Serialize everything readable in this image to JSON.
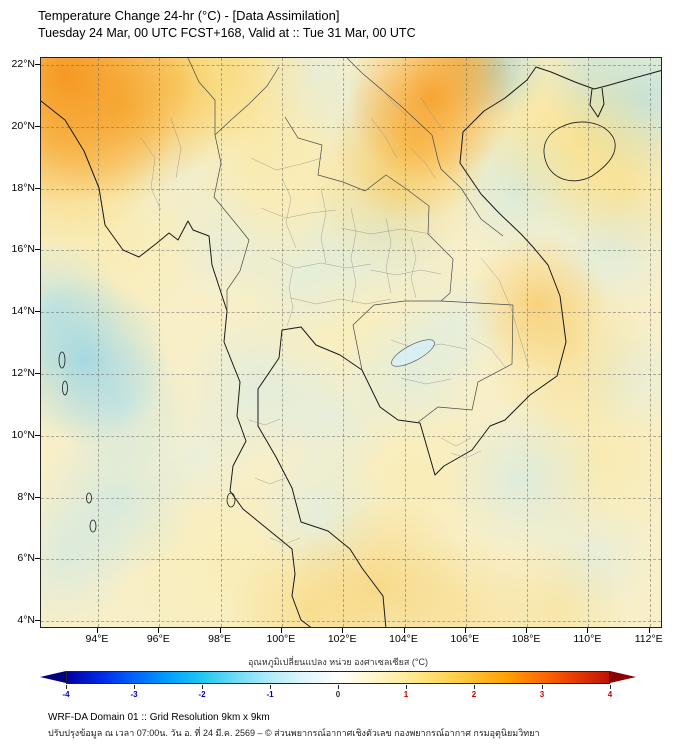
{
  "header": {
    "title_line1": "Temperature Change 24-hr (°C) - [Data Assimilation]",
    "title_line2": "Tuesday 24 Mar, 00 UTC FCST+168, Valid at :: Tue 31 Mar, 00 UTC"
  },
  "map": {
    "y_axis_labels": [
      "22°N",
      "20°N",
      "18°N",
      "16°N",
      "14°N",
      "12°N",
      "10°N",
      "8°N",
      "6°N",
      "4°N"
    ],
    "x_axis_labels": [
      "94°E",
      "96°E",
      "98°E",
      "100°E",
      "102°E",
      "104°E",
      "106°E",
      "108°E",
      "110°E",
      "112°E"
    ]
  },
  "field": {
    "base": "#F8EFC8",
    "blobs": [
      [
        4,
        3,
        130,
        "rgba(246,146,22,0.9)"
      ],
      [
        13,
        8,
        100,
        "rgba(247,166,36,0.65)"
      ],
      [
        3,
        14,
        110,
        "rgba(249,186,52,0.55)"
      ],
      [
        22,
        4,
        90,
        "rgba(250,200,70,0.5)"
      ],
      [
        63,
        7,
        85,
        "rgba(246,152,28,0.8)"
      ],
      [
        60,
        15,
        80,
        "rgba(248,178,48,0.6)"
      ],
      [
        57,
        23,
        85,
        "rgba(250,205,85,0.45)"
      ],
      [
        68,
        1,
        60,
        "rgba(247,166,40,0.55)"
      ],
      [
        31,
        2,
        80,
        "rgba(250,208,95,0.4)"
      ],
      [
        87,
        14,
        95,
        "rgba(250,212,95,0.45)"
      ],
      [
        94,
        23,
        75,
        "rgba(250,215,105,0.4)"
      ],
      [
        80,
        43,
        70,
        "rgba(248,185,65,0.5)"
      ],
      [
        85,
        52,
        85,
        "rgba(250,208,95,0.4)"
      ],
      [
        55,
        93,
        90,
        "rgba(249,196,75,0.5)"
      ],
      [
        43,
        97,
        80,
        "rgba(250,205,90,0.45)"
      ],
      [
        68,
        97,
        75,
        "rgba(250,210,100,0.4)"
      ],
      [
        83,
        97,
        70,
        "rgba(250,212,105,0.35)"
      ],
      [
        73,
        2,
        55,
        "rgba(140,212,236,0.65)"
      ],
      [
        97,
        7,
        85,
        "rgba(160,220,240,0.6)"
      ],
      [
        88,
        3,
        55,
        "rgba(185,230,244,0.5)"
      ],
      [
        7,
        53,
        85,
        "rgba(135,208,234,0.7)"
      ],
      [
        2,
        44,
        70,
        "rgba(165,222,240,0.55)"
      ],
      [
        13,
        61,
        70,
        "rgba(175,226,242,0.5)"
      ],
      [
        77,
        23,
        75,
        "rgba(190,232,245,0.5)"
      ],
      [
        92,
        33,
        70,
        "rgba(195,233,246,0.45)"
      ],
      [
        55,
        31,
        80,
        "rgba(198,234,246,0.5)"
      ],
      [
        43,
        38,
        70,
        "rgba(205,237,247,0.45)"
      ],
      [
        30,
        33,
        60,
        "rgba(210,238,248,0.4)"
      ],
      [
        35,
        58,
        80,
        "rgba(200,235,246,0.45)"
      ],
      [
        47,
        63,
        70,
        "rgba(205,237,247,0.4)"
      ],
      [
        60,
        55,
        70,
        "rgba(200,235,246,0.45)"
      ],
      [
        67,
        47,
        60,
        "rgba(205,237,247,0.4)"
      ],
      [
        12,
        78,
        80,
        "rgba(182,228,243,0.5)"
      ],
      [
        4,
        88,
        70,
        "rgba(188,230,244,0.45)"
      ],
      [
        45,
        80,
        70,
        "rgba(200,235,246,0.4)"
      ],
      [
        78,
        74,
        80,
        "rgba(193,232,245,0.45)"
      ],
      [
        95,
        56,
        60,
        "rgba(205,237,247,0.35)"
      ],
      [
        89,
        88,
        65,
        "rgba(200,235,246,0.35)"
      ],
      [
        25,
        70,
        60,
        "rgba(210,238,248,0.35)"
      ],
      [
        52,
        12,
        60,
        "rgba(213,239,248,0.35)"
      ],
      [
        45,
        3,
        65,
        "rgba(210,238,248,0.4)"
      ],
      [
        23,
        22,
        70,
        "rgba(225,242,248,0.35)"
      ],
      [
        35,
        14,
        160,
        "rgba(251,226,132,0.4)"
      ],
      [
        10,
        30,
        110,
        "rgba(251,229,140,0.35)"
      ],
      [
        50,
        45,
        130,
        "rgba(252,236,165,0.3)"
      ],
      [
        90,
        70,
        90,
        "rgba(251,226,132,0.35)"
      ],
      [
        60,
        75,
        100,
        "rgba(252,231,145,0.3)"
      ],
      [
        30,
        90,
        110,
        "rgba(252,233,150,0.3)"
      ],
      [
        75,
        10,
        120,
        "rgba(252,230,140,0.3)"
      ]
    ]
  },
  "colorbar": {
    "label": "อุณหภูมิเปลี่ยนแปลง หน่วย องศาเซลเซียส (°C)",
    "gradient": [
      "#0000A0",
      "#0028E8",
      "#0064FF",
      "#00A0FF",
      "#20C8F0",
      "#70DCF8",
      "#B0ECFA",
      "#E0F6FC",
      "#FFFFFF",
      "#FFF6D0",
      "#FFEC9A",
      "#FFDA60",
      "#FFC030",
      "#FFA000",
      "#FF6C00",
      "#E63C00",
      "#BC1400"
    ],
    "arrow_left_color": "#000080",
    "arrow_right_color": "#8B0000",
    "ticks": [
      "-4",
      "-3",
      "-2",
      "-1",
      "0",
      "1",
      "2",
      "3",
      "4"
    ],
    "tick_colors": [
      "#0000CC",
      "#0000CC",
      "#0000CC",
      "#0000CC",
      "#333333",
      "#CC0000",
      "#CC0000",
      "#CC0000",
      "#CC0000"
    ]
  },
  "footer": {
    "line1": "WRF-DA Domain 01 :: Grid Resolution 9km x 9km",
    "line2": "ปรับปรุงข้อมูล ณ เวลา 07:00น. วัน อ. ที่ 24 มี.ค. 2569 – © ส่วนพยากรณ์อากาศเชิงตัวเลข กองพยากรณ์อากาศ กรมอุตุนิยมวิทยา"
  },
  "chart_data": {
    "type": "heatmap",
    "title": "Temperature Change 24-hr (°C) - [Data Assimilation]",
    "init_time": "Tuesday 24 Mar, 00 UTC",
    "forecast_hour": "FCST+168",
    "valid_time": "Tue 31 Mar, 00 UTC",
    "x_ticks": [
      "94°E",
      "96°E",
      "98°E",
      "100°E",
      "102°E",
      "104°E",
      "106°E",
      "108°E",
      "110°E",
      "112°E"
    ],
    "y_ticks": [
      "22°N",
      "20°N",
      "18°N",
      "16°N",
      "14°N",
      "12°N",
      "10°N",
      "8°N",
      "6°N",
      "4°N"
    ],
    "xlim_deg_e": [
      92.1,
      112.5
    ],
    "ylim_deg_n": [
      3.7,
      22.3
    ],
    "colorbar_range_c": [
      -4,
      4
    ],
    "colorbar_ticks": [
      -4,
      -3,
      -2,
      -1,
      0,
      1,
      2,
      3,
      4
    ],
    "colorbar_label": "อุณหภูมิเปลี่ยนแปลง หน่วย องศาเซลเซียส (°C)",
    "notable_anomalies": [
      {
        "region": "NW corner, Myanmar/Bangladesh (92-97E, 20-22N)",
        "value_c": 2
      },
      {
        "region": "N Vietnam band (105-108E, 17-22N)",
        "value_c": 1.5
      },
      {
        "region": "NE corner offshore (109-112E, 20-22N)",
        "value_c": -0.5
      },
      {
        "region": "Andaman Sea (93-96E, 9-13N)",
        "value_c": -0.5
      },
      {
        "region": "S central Vietnam coast (107-110E, 12-14N)",
        "value_c": 1
      },
      {
        "region": "southern edge of domain (4-6N)",
        "value_c": 1
      },
      {
        "region": "background over most of domain",
        "value_c": 0.3
      }
    ]
  }
}
